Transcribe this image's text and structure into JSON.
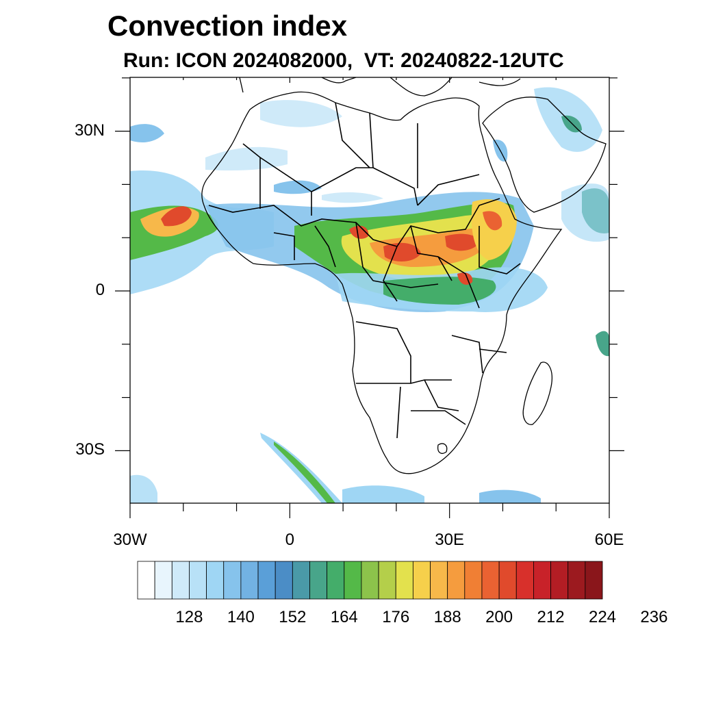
{
  "title": "Convection index",
  "subtitle": "Run: ICON 2024082000,  VT: 20240822-12UTC",
  "lat_ticks": [
    {
      "label": "30N",
      "lat": 30
    },
    {
      "label": "0",
      "lat": 0
    },
    {
      "label": "30S",
      "lat": -30
    }
  ],
  "lon_ticks": [
    {
      "label": "30W",
      "lon": -30
    },
    {
      "label": "0",
      "lon": 0
    },
    {
      "label": "30E",
      "lon": 30
    },
    {
      "label": "60E",
      "lon": 60
    }
  ],
  "colorbar": {
    "colors": [
      "#ffffff",
      "#e8f5fd",
      "#cfeaf9",
      "#b8e1f7",
      "#9fd6f4",
      "#86c3ec",
      "#72b2e3",
      "#5a9fd8",
      "#4b8dc6",
      "#4a9aa8",
      "#48a58a",
      "#44ad6a",
      "#54b948",
      "#8cc34b",
      "#b4cf4a",
      "#e3e14d",
      "#f6d04b",
      "#f7b84a",
      "#f59c3e",
      "#f07f34",
      "#ea6232",
      "#e04a2c",
      "#d8302b",
      "#c82229",
      "#b31d24",
      "#9c1a1f",
      "#8a161b"
    ],
    "labels": [
      "128",
      "140",
      "152",
      "164",
      "176",
      "188",
      "200",
      "212",
      "224",
      "236"
    ]
  }
}
